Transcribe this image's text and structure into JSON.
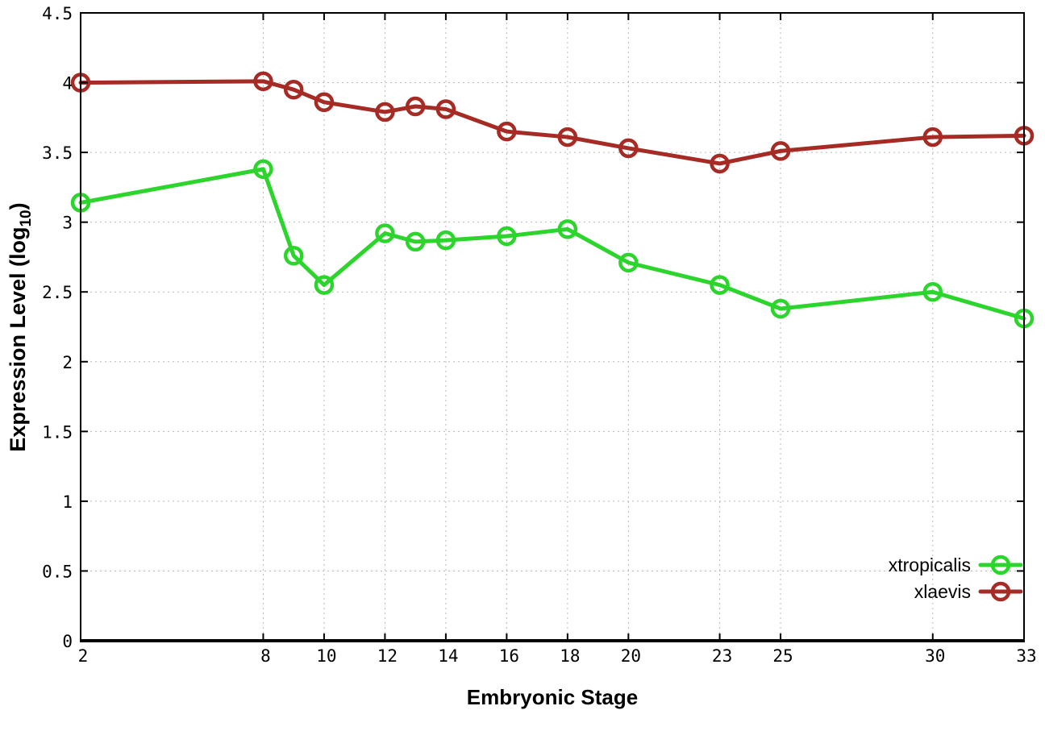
{
  "chart_data": {
    "type": "line",
    "title": "",
    "xlabel": "Embryonic Stage",
    "ylabel": "Expression Level (log10)",
    "ylabel_parts": {
      "pre": "Expression Level (log",
      "sub": "10",
      "post": ")"
    },
    "xlim": [
      2,
      33
    ],
    "ylim": [
      0,
      4.5
    ],
    "xticks": [
      2,
      8,
      10,
      12,
      14,
      16,
      18,
      20,
      23,
      25,
      30,
      33
    ],
    "yticks": [
      0,
      0.5,
      1,
      1.5,
      2,
      2.5,
      3,
      3.5,
      4,
      4.5
    ],
    "grid": true,
    "legend_position": "inside-right-middle",
    "x": [
      2,
      8,
      9,
      10,
      12,
      13,
      14,
      16,
      18,
      20,
      23,
      25,
      30,
      33
    ],
    "series": [
      {
        "name": "xtropicalis",
        "color": "#2bd52b",
        "values": [
          3.14,
          3.38,
          2.76,
          2.55,
          2.92,
          2.86,
          2.87,
          2.9,
          2.95,
          2.71,
          2.55,
          2.38,
          2.5,
          2.31
        ]
      },
      {
        "name": "xlaevis",
        "color": "#a62b24",
        "values": [
          4.0,
          4.01,
          3.95,
          3.86,
          3.79,
          3.83,
          3.81,
          3.65,
          3.61,
          3.53,
          3.42,
          3.51,
          3.61,
          3.62
        ]
      }
    ]
  },
  "colors": {
    "background": "#ffffff",
    "grid": "#b9b9b9",
    "axis": "#000000",
    "tick_text": "#000000"
  }
}
